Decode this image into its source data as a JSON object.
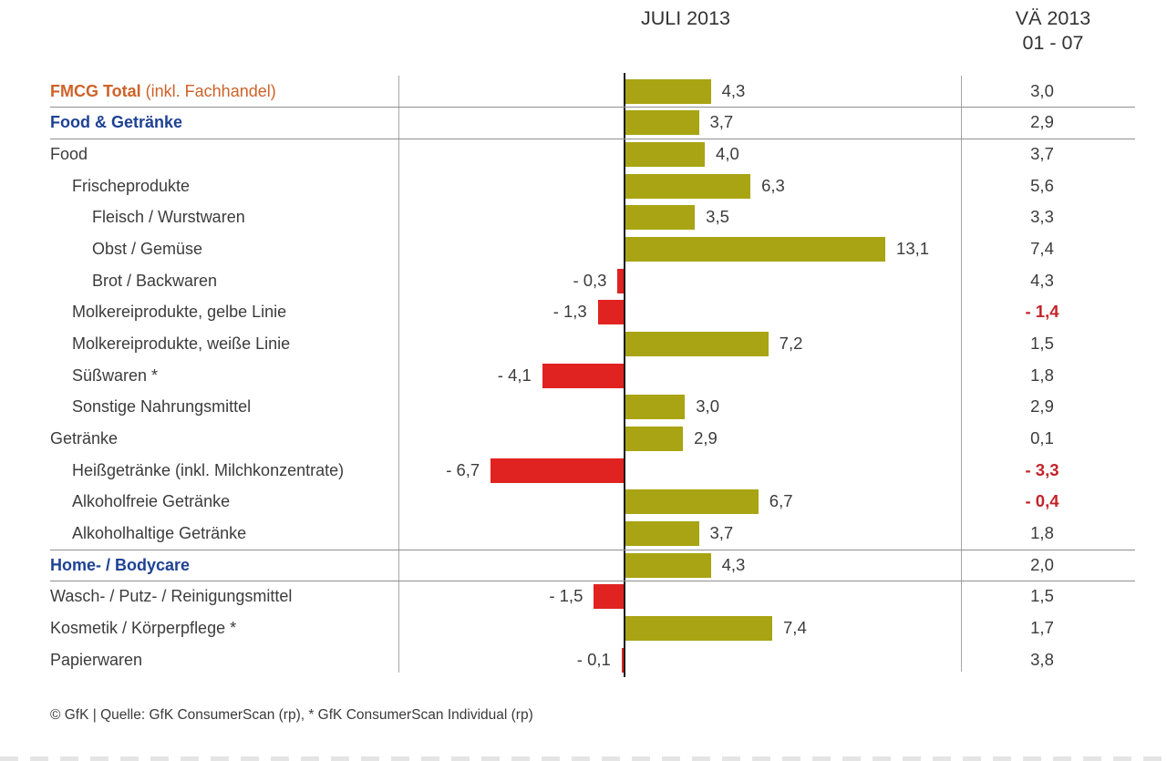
{
  "header": {
    "bar_column_title": "JULI 2013",
    "vae_column_title_line1": "VÄ 2013",
    "vae_column_title_line2": "01 - 07"
  },
  "footer": {
    "source": "© GfK | Quelle: GfK ConsumerScan (rp), * GfK ConsumerScan Individual (rp)"
  },
  "colors": {
    "positive_bar": "#a8a413",
    "negative_bar": "#e02321",
    "negative_value_text": "#c2242a",
    "orange_accent": "#cd6228",
    "blue_accent": "#1e4294",
    "body_text": "#3c3c3c",
    "header_text": "#333333",
    "grid_line": "#8f8f8f",
    "axis_line": "#1a1a1a"
  },
  "chart_data": {
    "type": "bar",
    "orientation": "horizontal",
    "title": "",
    "columns": [
      "JULI 2013",
      "VÄ 2013 01 - 07"
    ],
    "x_range_estimate": [
      -8.5,
      14
    ],
    "grid": false,
    "legend": "none",
    "rows": [
      {
        "label": "FMCG Total",
        "label_suffix": " (inkl. Fachhandel)",
        "emphasis": "orange",
        "indent": 0,
        "juli": 4.3,
        "juli_label": "4,3",
        "vae": 3.0,
        "vae_label": "3,0",
        "vae_negative": false,
        "line_below": true
      },
      {
        "label": "Food & Getränke",
        "emphasis": "blue",
        "indent": 0,
        "juli": 3.7,
        "juli_label": "3,7",
        "vae": 2.9,
        "vae_label": "2,9",
        "vae_negative": false,
        "line_below": true
      },
      {
        "label": "Food",
        "emphasis": null,
        "indent": 0,
        "juli": 4.0,
        "juli_label": "4,0",
        "vae": 3.7,
        "vae_label": "3,7",
        "vae_negative": false,
        "line_below": false
      },
      {
        "label": "Frischeprodukte",
        "emphasis": null,
        "indent": 1,
        "juli": 6.3,
        "juli_label": "6,3",
        "vae": 5.6,
        "vae_label": "5,6",
        "vae_negative": false,
        "line_below": false
      },
      {
        "label": "Fleisch / Wurstwaren",
        "emphasis": null,
        "indent": 2,
        "juli": 3.5,
        "juli_label": "3,5",
        "vae": 3.3,
        "vae_label": "3,3",
        "vae_negative": false,
        "line_below": false
      },
      {
        "label": "Obst / Gemüse",
        "emphasis": null,
        "indent": 2,
        "juli": 13.1,
        "juli_label": "13,1",
        "vae": 7.4,
        "vae_label": "7,4",
        "vae_negative": false,
        "line_below": false
      },
      {
        "label": "Brot / Backwaren",
        "emphasis": null,
        "indent": 2,
        "juli": -0.3,
        "juli_label": "- 0,3",
        "vae": 4.3,
        "vae_label": "4,3",
        "vae_negative": false,
        "line_below": false
      },
      {
        "label": "Molkereiprodukte, gelbe Linie",
        "emphasis": null,
        "indent": 1,
        "juli": -1.3,
        "juli_label": "- 1,3",
        "vae": -1.4,
        "vae_label": "- 1,4",
        "vae_negative": true,
        "line_below": false
      },
      {
        "label": "Molkereiprodukte, weiße Linie",
        "emphasis": null,
        "indent": 1,
        "juli": 7.2,
        "juli_label": "7,2",
        "vae": 1.5,
        "vae_label": "1,5",
        "vae_negative": false,
        "line_below": false
      },
      {
        "label": "Süßwaren *",
        "emphasis": null,
        "indent": 1,
        "juli": -4.1,
        "juli_label": "- 4,1",
        "vae": 1.8,
        "vae_label": "1,8",
        "vae_negative": false,
        "line_below": false
      },
      {
        "label": "Sonstige Nahrungsmittel",
        "emphasis": null,
        "indent": 1,
        "juli": 3.0,
        "juli_label": "3,0",
        "vae": 2.9,
        "vae_label": "2,9",
        "vae_negative": false,
        "line_below": false
      },
      {
        "label": "Getränke",
        "emphasis": null,
        "indent": 0,
        "juli": 2.9,
        "juli_label": "2,9",
        "vae": 0.1,
        "vae_label": "0,1",
        "vae_negative": false,
        "line_below": false
      },
      {
        "label": "Heißgetränke (inkl. Milchkonzentrate)",
        "emphasis": null,
        "indent": 1,
        "juli": -6.7,
        "juli_label": "- 6,7",
        "vae": -3.3,
        "vae_label": "- 3,3",
        "vae_negative": true,
        "line_below": false
      },
      {
        "label": "Alkoholfreie Getränke",
        "emphasis": null,
        "indent": 1,
        "juli": 6.7,
        "juli_label": "6,7",
        "vae": -0.4,
        "vae_label": "- 0,4",
        "vae_negative": true,
        "line_below": false
      },
      {
        "label": "Alkoholhaltige Getränke",
        "emphasis": null,
        "indent": 1,
        "juli": 3.7,
        "juli_label": "3,7",
        "vae": 1.8,
        "vae_label": "1,8",
        "vae_negative": false,
        "line_below": true
      },
      {
        "label": "Home- / Bodycare",
        "emphasis": "blue",
        "indent": 0,
        "juli": 4.3,
        "juli_label": "4,3",
        "vae": 2.0,
        "vae_label": "2,0",
        "vae_negative": false,
        "line_below": true
      },
      {
        "label": "Wasch- / Putz- / Reinigungsmittel",
        "emphasis": null,
        "indent": 0,
        "juli": -1.5,
        "juli_label": "- 1,5",
        "vae": 1.5,
        "vae_label": "1,5",
        "vae_negative": false,
        "line_below": false
      },
      {
        "label": "Kosmetik / Körperpflege *",
        "emphasis": null,
        "indent": 0,
        "juli": 7.4,
        "juli_label": "7,4",
        "vae": 1.7,
        "vae_label": "1,7",
        "vae_negative": false,
        "line_below": false
      },
      {
        "label": "Papierwaren",
        "emphasis": null,
        "indent": 0,
        "juli": -0.1,
        "juli_label": "- 0,1",
        "vae": 3.8,
        "vae_label": "3,8",
        "vae_negative": false,
        "line_below": false
      }
    ]
  }
}
